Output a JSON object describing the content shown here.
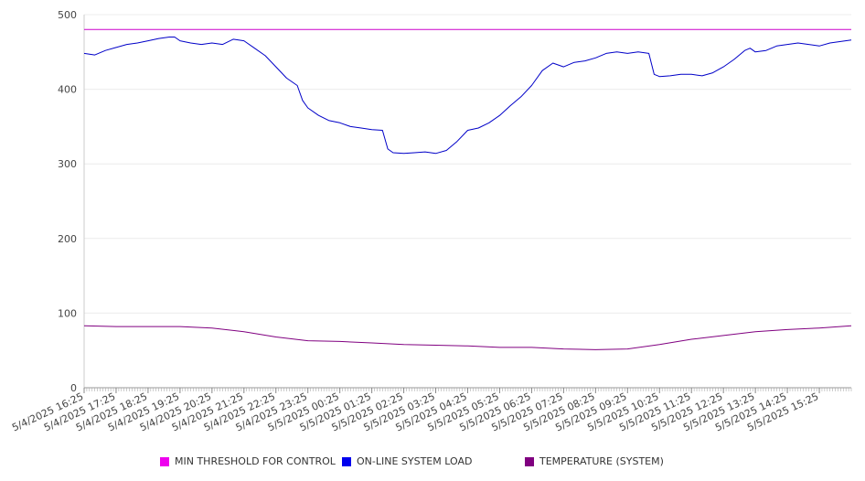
{
  "chart_data": {
    "type": "line",
    "ylim": [
      0,
      500
    ],
    "yticks": [
      0,
      100,
      200,
      300,
      400,
      500
    ],
    "grid": true,
    "legend_position": "bottom",
    "x_tick_labels": [
      "5/4/2025 16:25",
      "5/4/2025 17:25",
      "5/4/2025 18:25",
      "5/4/2025 19:25",
      "5/4/2025 20:25",
      "5/4/2025 21:25",
      "5/4/2025 22:25",
      "5/4/2025 23:25",
      "5/5/2025 00:25",
      "5/5/2025 01:25",
      "5/5/2025 02:25",
      "5/5/2025 03:25",
      "5/5/2025 04:25",
      "5/5/2025 05:25",
      "5/5/2025 06:25",
      "5/5/2025 07:25",
      "5/5/2025 08:25",
      "5/5/2025 09:25",
      "5/5/2025 10:25",
      "5/5/2025 11:25",
      "5/5/2025 12:25",
      "5/5/2025 13:25",
      "5/5/2025 14:25",
      "5/5/2025 15:25"
    ],
    "series": [
      {
        "name": "MIN THRESHOLD FOR CONTROL",
        "color": "#cc00cc",
        "x": [
          "5/4/2025 16:25",
          "5/5/2025 16:25"
        ],
        "values": [
          480,
          480
        ]
      },
      {
        "name": "ON-LINE SYSTEM LOAD",
        "color": "#0000c8",
        "x": [
          "5/4/2025 16:25",
          "5/4/2025 16:45",
          "5/4/2025 17:05",
          "5/4/2025 17:25",
          "5/4/2025 17:45",
          "5/4/2025 18:05",
          "5/4/2025 18:25",
          "5/4/2025 18:45",
          "5/4/2025 19:05",
          "5/4/2025 19:15",
          "5/4/2025 19:25",
          "5/4/2025 19:45",
          "5/4/2025 20:05",
          "5/4/2025 20:25",
          "5/4/2025 20:45",
          "5/4/2025 21:05",
          "5/4/2025 21:25",
          "5/4/2025 21:45",
          "5/4/2025 22:05",
          "5/4/2025 22:25",
          "5/4/2025 22:45",
          "5/4/2025 23:05",
          "5/4/2025 23:15",
          "5/4/2025 23:25",
          "5/4/2025 23:45",
          "5/5/2025 00:05",
          "5/5/2025 00:25",
          "5/5/2025 00:45",
          "5/5/2025 01:05",
          "5/5/2025 01:25",
          "5/5/2025 01:45",
          "5/5/2025 01:55",
          "5/5/2025 02:05",
          "5/5/2025 02:25",
          "5/5/2025 02:45",
          "5/5/2025 03:05",
          "5/5/2025 03:25",
          "5/5/2025 03:45",
          "5/5/2025 04:05",
          "5/5/2025 04:25",
          "5/5/2025 04:45",
          "5/5/2025 05:05",
          "5/5/2025 05:25",
          "5/5/2025 05:45",
          "5/5/2025 06:05",
          "5/5/2025 06:25",
          "5/5/2025 06:45",
          "5/5/2025 07:05",
          "5/5/2025 07:25",
          "5/5/2025 07:45",
          "5/5/2025 08:05",
          "5/5/2025 08:25",
          "5/5/2025 08:45",
          "5/5/2025 09:05",
          "5/5/2025 09:25",
          "5/5/2025 09:45",
          "5/5/2025 10:05",
          "5/5/2025 10:15",
          "5/5/2025 10:25",
          "5/5/2025 10:45",
          "5/5/2025 11:05",
          "5/5/2025 11:25",
          "5/5/2025 11:45",
          "5/5/2025 12:05",
          "5/5/2025 12:25",
          "5/5/2025 12:45",
          "5/5/2025 13:05",
          "5/5/2025 13:15",
          "5/5/2025 13:25",
          "5/5/2025 13:45",
          "5/5/2025 14:05",
          "5/5/2025 14:25",
          "5/5/2025 14:45",
          "5/5/2025 15:05",
          "5/5/2025 15:25",
          "5/5/2025 15:45",
          "5/5/2025 16:05",
          "5/5/2025 16:25"
        ],
        "values": [
          448,
          446,
          452,
          456,
          460,
          462,
          465,
          468,
          470,
          470,
          465,
          462,
          460,
          462,
          460,
          467,
          465,
          455,
          445,
          430,
          415,
          405,
          385,
          375,
          365,
          358,
          355,
          350,
          348,
          346,
          345,
          320,
          315,
          314,
          315,
          316,
          314,
          318,
          330,
          345,
          348,
          355,
          365,
          378,
          390,
          405,
          425,
          435,
          430,
          436,
          438,
          442,
          448,
          450,
          448,
          450,
          448,
          420,
          417,
          418,
          420,
          420,
          418,
          422,
          430,
          440,
          452,
          455,
          450,
          452,
          458,
          460,
          462,
          460,
          458,
          462,
          464,
          466
        ]
      },
      {
        "name": "TEMPERATURE (SYSTEM)",
        "color": "#800080",
        "x": [
          "5/4/2025 16:25",
          "5/4/2025 17:25",
          "5/4/2025 18:25",
          "5/4/2025 19:25",
          "5/4/2025 20:25",
          "5/4/2025 21:25",
          "5/4/2025 22:25",
          "5/4/2025 23:25",
          "5/5/2025 00:25",
          "5/5/2025 01:25",
          "5/5/2025 02:25",
          "5/5/2025 03:25",
          "5/5/2025 04:25",
          "5/5/2025 05:25",
          "5/5/2025 06:25",
          "5/5/2025 07:25",
          "5/5/2025 08:25",
          "5/5/2025 09:25",
          "5/5/2025 10:25",
          "5/5/2025 11:25",
          "5/5/2025 12:25",
          "5/5/2025 13:25",
          "5/5/2025 14:25",
          "5/5/2025 15:25",
          "5/5/2025 16:25"
        ],
        "values": [
          83,
          82,
          82,
          82,
          80,
          75,
          68,
          63,
          62,
          60,
          58,
          57,
          56,
          54,
          54,
          52,
          51,
          52,
          58,
          65,
          70,
          75,
          78,
          80,
          83
        ]
      }
    ]
  }
}
